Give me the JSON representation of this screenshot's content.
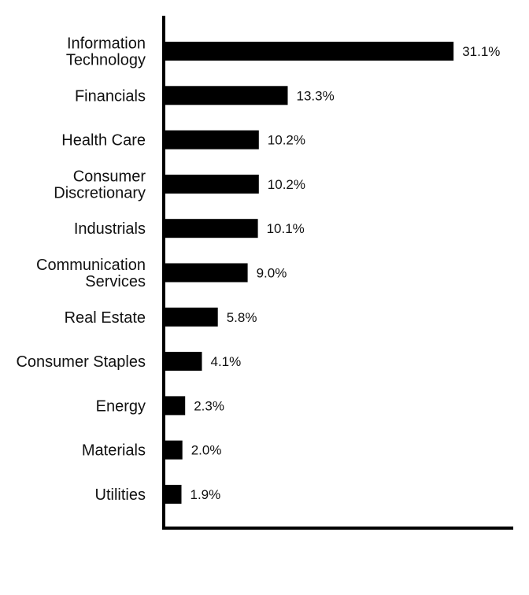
{
  "chart_data": {
    "type": "bar",
    "orientation": "horizontal",
    "title": "",
    "xlabel": "",
    "ylabel": "",
    "grid": false,
    "legend": "none",
    "xlim": [
      0,
      37.5
    ],
    "categories": [
      [
        "Information",
        "Technology"
      ],
      [
        "Financials"
      ],
      [
        "Health Care"
      ],
      [
        "Consumer",
        "Discretionary"
      ],
      [
        "Industrials"
      ],
      [
        "Communication",
        "Services"
      ],
      [
        "Real Estate"
      ],
      [
        "Consumer Staples"
      ],
      [
        "Energy"
      ],
      [
        "Materials"
      ],
      [
        "Utilities"
      ]
    ],
    "values": [
      31.1,
      13.3,
      10.2,
      10.2,
      10.1,
      9.0,
      5.8,
      4.1,
      2.3,
      2.0,
      1.9
    ],
    "value_labels": [
      "31.1%",
      "13.3%",
      "10.2%",
      "10.2%",
      "10.1%",
      "9.0%",
      "5.8%",
      "4.1%",
      "2.3%",
      "2.0%",
      "1.9%"
    ],
    "bar_color": "#000000",
    "axis_color": "#000000"
  }
}
